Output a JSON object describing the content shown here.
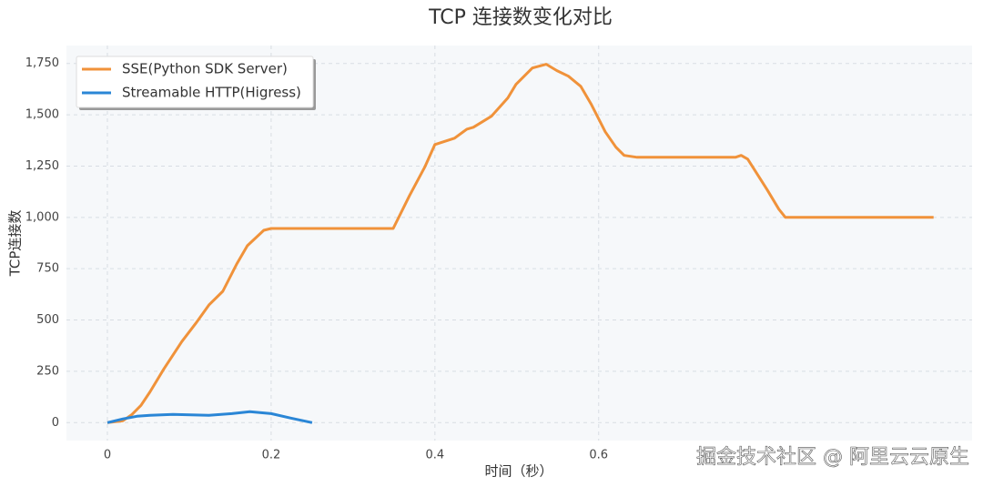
{
  "chart_data": {
    "type": "line",
    "title": "TCP 连接数变化对比",
    "xlabel": "时间（秒）",
    "ylabel": "TCP连接数",
    "xlim": [
      -0.05,
      1.056
    ],
    "ylim": [
      -87.5,
      1837.5
    ],
    "xticks": [
      0,
      0.2,
      0.4,
      0.6
    ],
    "yticks": [
      0,
      250,
      500,
      750,
      {
        "value": 1000,
        "label": "1,000"
      },
      {
        "value": 1250,
        "label": "1,250"
      },
      {
        "value": 1500,
        "label": "1,500"
      },
      {
        "value": 1750,
        "label": "1,750"
      }
    ],
    "grid": true,
    "legend": "upper left",
    "series": [
      {
        "name": "SSE(Python SDK Server)",
        "color": "#f0923a",
        "x": [
          0,
          0.019,
          0.03,
          0.041,
          0.052,
          0.069,
          0.091,
          0.108,
          0.124,
          0.141,
          0.158,
          0.171,
          0.191,
          0.2,
          0.349,
          0.369,
          0.388,
          0.4,
          0.424,
          0.439,
          0.447,
          0.469,
          0.489,
          0.499,
          0.519,
          0.536,
          0.549,
          0.563,
          0.578,
          0.591,
          0.608,
          0.621,
          0.631,
          0.647,
          0.767,
          0.774,
          0.782,
          0.806,
          0.82,
          0.828,
          1.009
        ],
        "values": [
          0,
          9,
          40,
          84,
          150,
          262,
          395,
          484,
          573,
          640,
          773,
          862,
          937,
          946,
          946,
          1106,
          1248,
          1355,
          1386,
          1430,
          1439,
          1493,
          1582,
          1648,
          1728,
          1746,
          1715,
          1688,
          1639,
          1550,
          1417,
          1342,
          1302,
          1293,
          1293,
          1302,
          1284,
          1133,
          1040,
          1000,
          1000
        ]
      },
      {
        "name": "Streamable HTTP(Higress)",
        "color": "#2a86d6",
        "x": [
          0,
          0.019,
          0.036,
          0.052,
          0.08,
          0.124,
          0.152,
          0.174,
          0.2,
          0.224,
          0.25
        ],
        "values": [
          0,
          18,
          31,
          36,
          40,
          36,
          44,
          53,
          44,
          22,
          0
        ]
      }
    ],
    "watermark": "掘金技术社区 @ 阿里云云原生"
  }
}
